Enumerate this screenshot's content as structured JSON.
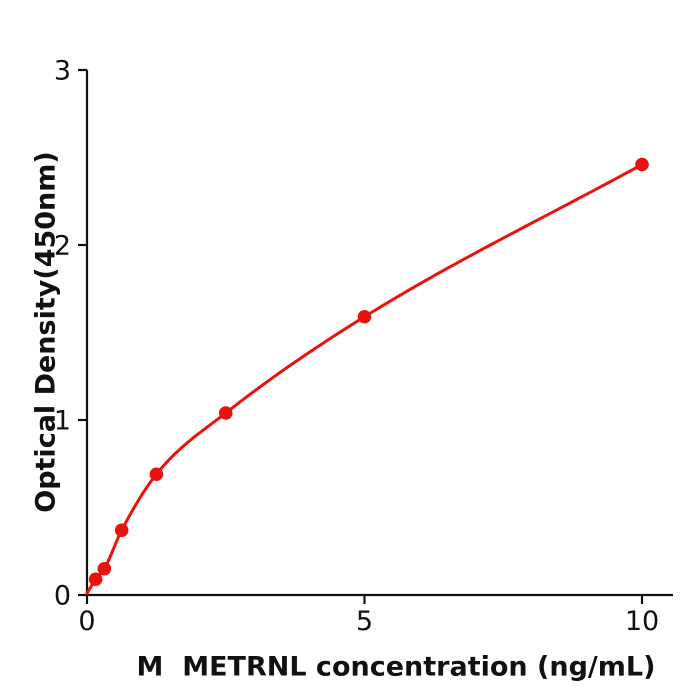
{
  "chart_data": {
    "type": "scatter",
    "title": "",
    "xlabel": "M  METRNL concentration (ng/mL)",
    "ylabel": "Optical Density(450nm)",
    "x": [
      0.156,
      0.3125,
      0.625,
      1.25,
      2.5,
      5,
      10
    ],
    "y": [
      0.09,
      0.15,
      0.37,
      0.69,
      1.04,
      1.59,
      2.46
    ],
    "curve_start": {
      "x": 0,
      "y": 0.01
    },
    "xticks": [
      0,
      5,
      10
    ],
    "xtick_labels": [
      "0",
      "5",
      "10"
    ],
    "yticks": [
      0,
      1,
      2,
      3
    ],
    "ytick_labels": [
      "0",
      "1",
      "2",
      "3"
    ],
    "xlim": [
      0,
      10.55
    ],
    "ylim": [
      0,
      3
    ],
    "grid": false,
    "legend": null,
    "curve_type": "smooth-fit-through-points",
    "marker_color": "#e8120f",
    "line_color": "#e8120f",
    "axis_color": "#111111",
    "background_color": "#ffffff"
  }
}
